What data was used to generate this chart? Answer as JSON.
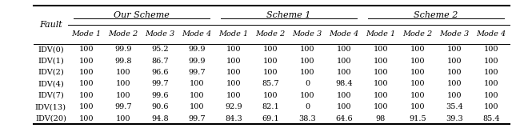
{
  "col_groups": [
    {
      "label": "Our Scheme",
      "start": 1,
      "end": 4
    },
    {
      "label": "Scheme 1",
      "start": 5,
      "end": 8
    },
    {
      "label": "Scheme 2",
      "start": 9,
      "end": 12
    }
  ],
  "sub_headers": [
    "Mode 1",
    "Mode 2",
    "Mode 3",
    "Mode 4",
    "Mode 1",
    "Mode 2",
    "Mode 3",
    "Mode 4",
    "Mode 1",
    "Mode 2",
    "Mode 3",
    "Mode 4"
  ],
  "fault_col": "Fault",
  "faults": [
    "IDV(0)",
    "IDV(1)",
    "IDV(2)",
    "IDV(4)",
    "IDV(7)",
    "IDV(13)",
    "IDV(20)"
  ],
  "data": [
    [
      100,
      99.9,
      95.2,
      99.9,
      100,
      100,
      100,
      100,
      100,
      100,
      100,
      100
    ],
    [
      100,
      99.8,
      86.7,
      99.9,
      100,
      100,
      100,
      100,
      100,
      100,
      100,
      100
    ],
    [
      100,
      100,
      96.6,
      99.7,
      100,
      100,
      100,
      100,
      100,
      100,
      100,
      100
    ],
    [
      100,
      100,
      99.7,
      100,
      100,
      85.7,
      0,
      98.4,
      100,
      100,
      100,
      100
    ],
    [
      100,
      100,
      99.6,
      100,
      100,
      100,
      100,
      100,
      100,
      100,
      100,
      100
    ],
    [
      100,
      99.7,
      90.6,
      100,
      92.9,
      82.1,
      0,
      100,
      100,
      100,
      35.4,
      100
    ],
    [
      100,
      100,
      94.8,
      99.7,
      84.3,
      69.1,
      38.3,
      64.6,
      98,
      91.5,
      39.3,
      85.4
    ]
  ],
  "bg_color": "#ffffff",
  "text_color": "#000000",
  "font_size": 7.0,
  "header_font_size": 8.0,
  "fig_width": 6.4,
  "fig_height": 1.6,
  "dpi": 100
}
